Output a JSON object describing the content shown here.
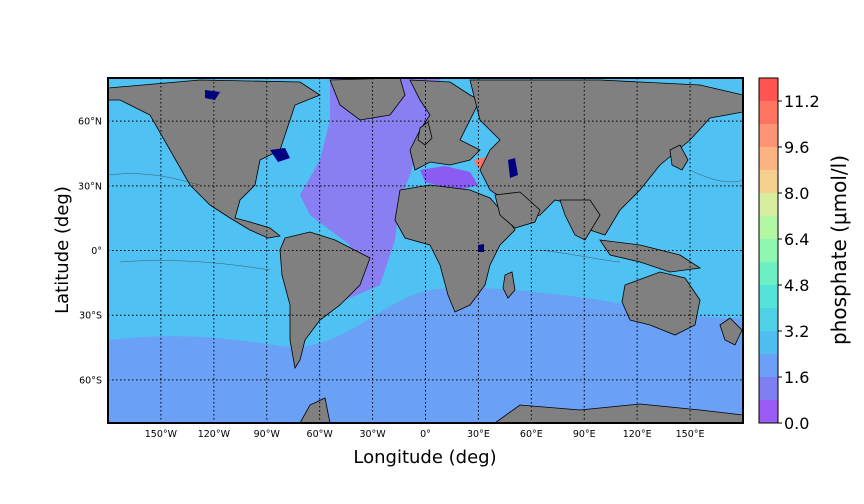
{
  "chart_data": {
    "type": "heatmap",
    "title": "",
    "xlabel": "Longitude (deg)",
    "ylabel": "Latitude (deg)",
    "xlim": [
      -180,
      180
    ],
    "ylim": [
      -80,
      80
    ],
    "grid": true,
    "x_ticks": [
      {
        "value": -150,
        "label": "150°W"
      },
      {
        "value": -120,
        "label": "120°W"
      },
      {
        "value": -90,
        "label": "90°W"
      },
      {
        "value": -60,
        "label": "60°W"
      },
      {
        "value": -30,
        "label": "30°W"
      },
      {
        "value": 0,
        "label": "0°"
      },
      {
        "value": 30,
        "label": "30°E"
      },
      {
        "value": 60,
        "label": "60°E"
      },
      {
        "value": 90,
        "label": "90°E"
      },
      {
        "value": 120,
        "label": "120°E"
      },
      {
        "value": 150,
        "label": "150°E"
      }
    ],
    "y_ticks": [
      {
        "value": 60,
        "label": "60°N"
      },
      {
        "value": 30,
        "label": "30°N"
      },
      {
        "value": 0,
        "label": "0°"
      },
      {
        "value": -30,
        "label": "30°S"
      },
      {
        "value": -60,
        "label": "60°S"
      }
    ],
    "colorbar": {
      "label": "phosphate (μmol/l)",
      "range": [
        0.0,
        12.0
      ],
      "levels": [
        0.0,
        0.8,
        1.6,
        2.4,
        3.2,
        4.0,
        4.8,
        5.6,
        6.4,
        7.2,
        8.0,
        8.8,
        9.6,
        10.4,
        11.2,
        12.0
      ],
      "colors": [
        "#9a5cf2",
        "#7f7ff2",
        "#6aa0f5",
        "#4fbff0",
        "#4fd2e8",
        "#55e2d8",
        "#6cf0c4",
        "#8ff7b0",
        "#b2f7a4",
        "#d6ee9e",
        "#f5d08e",
        "#fbb482",
        "#fd9474",
        "#fd7462",
        "#fe5550"
      ],
      "ticks": [
        "0.0",
        "1.6",
        "3.2",
        "4.8",
        "6.4",
        "8.0",
        "9.6",
        "11.2"
      ]
    }
  },
  "colors": {
    "land": "#808080",
    "atlantic_low": "#8a7ff2",
    "tropical": "#4fc1f2",
    "southern": "#6aa0f5",
    "hotspot": "#fd7462",
    "baltic": "#6cf0c4",
    "lakes": "#000080"
  }
}
